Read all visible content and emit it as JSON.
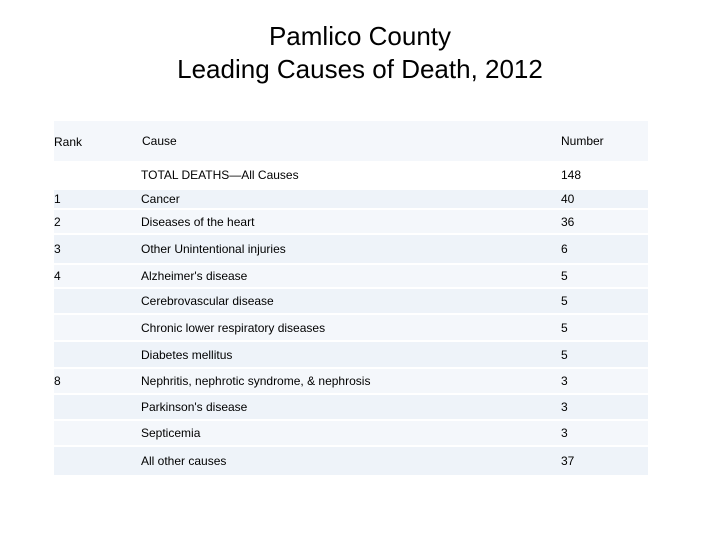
{
  "slide": {
    "title_line1": "Pamlico County",
    "title_line2": "Leading Causes of Death, 2012"
  },
  "table": {
    "headers": {
      "rank": "Rank",
      "cause": "Cause",
      "number": "Number"
    },
    "total": {
      "rank": "",
      "cause": "TOTAL DEATHS—All Causes",
      "number": "148"
    },
    "rows": [
      {
        "rank": "1",
        "cause": "Cancer",
        "number": "40"
      },
      {
        "rank": "2",
        "cause": "Diseases of the heart",
        "number": "36"
      },
      {
        "rank": "3",
        "cause": "Other Unintentional injuries",
        "number": "6"
      },
      {
        "rank": "4",
        "cause": "Alzheimer's disease",
        "number": "5"
      },
      {
        "rank": "",
        "cause": "Cerebrovascular disease",
        "number": "5"
      },
      {
        "rank": "",
        "cause": "Chronic lower respiratory diseases",
        "number": "5"
      },
      {
        "rank": "",
        "cause": "Diabetes mellitus",
        "number": "5"
      },
      {
        "rank": "8",
        "cause": "Nephritis, nephrotic syndrome, & nephrosis",
        "number": "3"
      },
      {
        "rank": "",
        "cause": "Parkinson's disease",
        "number": "3"
      },
      {
        "rank": "",
        "cause": "Septicemia",
        "number": "3"
      },
      {
        "rank": "",
        "cause": "All other causes",
        "number": "37"
      }
    ]
  }
}
